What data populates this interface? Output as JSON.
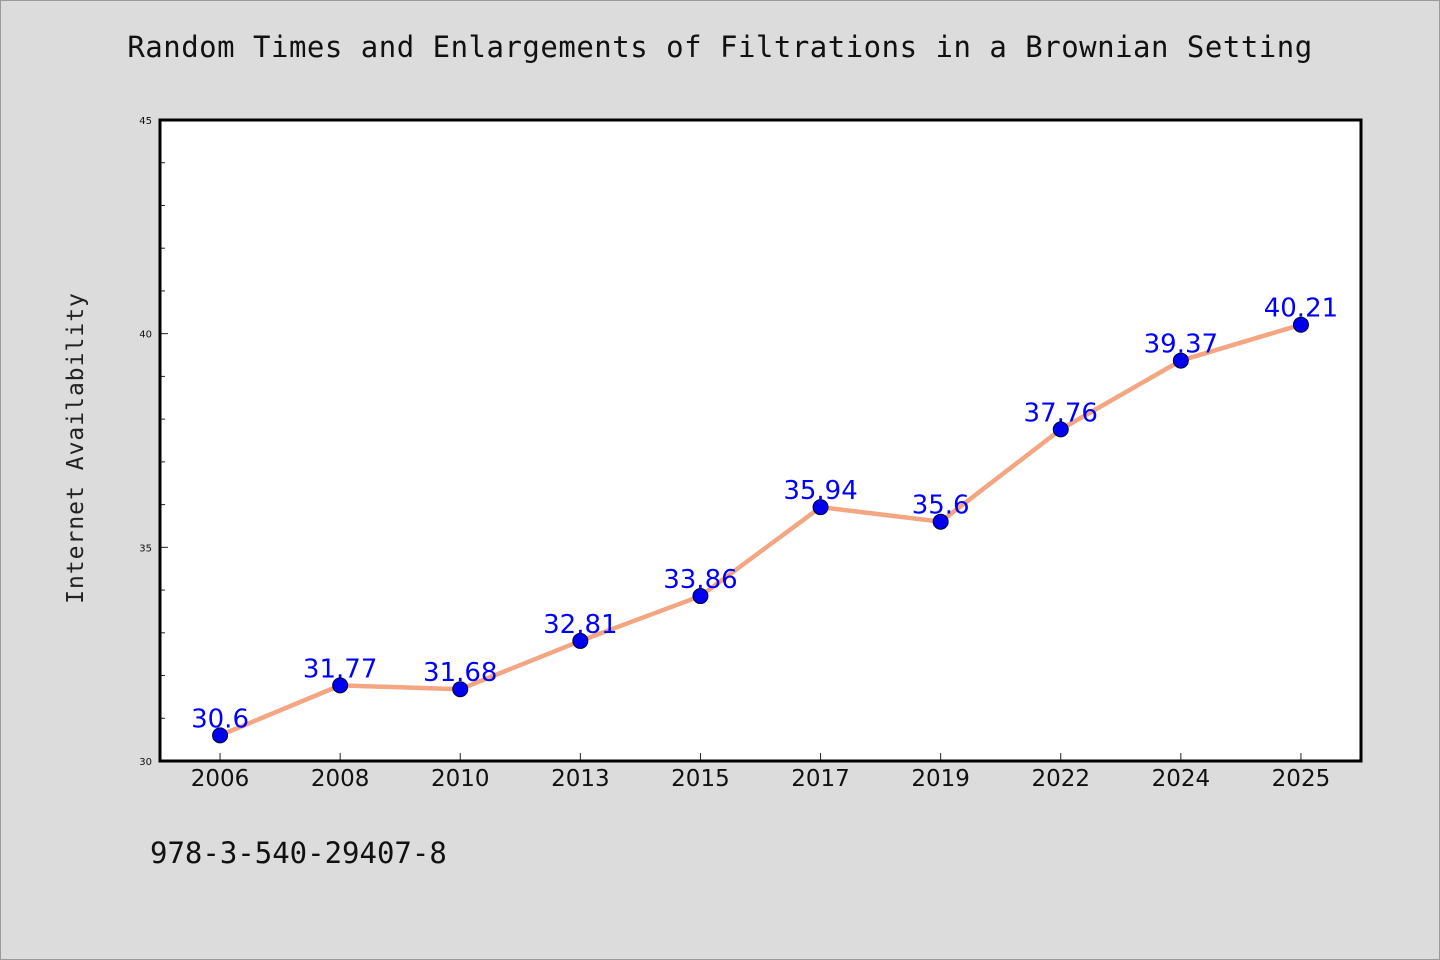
{
  "chart_data": {
    "type": "line",
    "title": "Random Times and Enlargements of Filtrations in a Brownian Setting",
    "ylabel": "Internet Availability",
    "xlabel": "",
    "categories": [
      "2006",
      "2008",
      "2010",
      "2013",
      "2015",
      "2017",
      "2019",
      "2022",
      "2024",
      "2025"
    ],
    "series": [
      {
        "values": [
          30.6,
          31.77,
          31.68,
          32.81,
          33.86,
          35.94,
          35.6,
          37.76,
          39.37,
          40.21
        ],
        "labels": [
          "30.6",
          "31.77",
          "31.68",
          "32.81",
          "33.86",
          "35.94",
          "35.6",
          "37.76",
          "39.37",
          "40.21"
        ]
      }
    ],
    "ylim": [
      30,
      45
    ],
    "yticks": [
      30,
      35,
      40,
      45
    ],
    "grid": false,
    "colors": {
      "line": "#f4a582",
      "marker": "#0000ee",
      "data_label": "#0000ff",
      "background": "#dcdcdc",
      "plot_background": "#ffffff"
    }
  },
  "footer": {
    "isbn": "978-3-540-29407-8"
  }
}
